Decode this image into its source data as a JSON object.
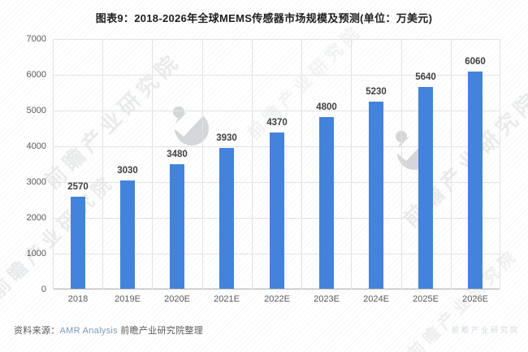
{
  "title": "图表9：2018-2026年全球MEMS传感器市场规模及预测(单位：万美元)",
  "source_note": {
    "label": "资料来源：",
    "source": "AMR Analysis",
    "suffix": " 前瞻产业研究院整理"
  },
  "watermark": {
    "text": "前瞻产业研究院"
  },
  "colors": {
    "bar": "#4383db",
    "grid": "#e2e2e2",
    "axis": "#ababab",
    "title_text": "#1f1f1f",
    "value_label_text": "#3f3f3f",
    "tick_text": "#595959"
  },
  "chart_data": {
    "type": "bar",
    "title": "图表9：2018-2026年全球MEMS传感器市场规模及预测(单位：万美元)",
    "categories": [
      "2018",
      "2019E",
      "2020E",
      "2021E",
      "2022E",
      "2023E",
      "2024E",
      "2025E",
      "2026E"
    ],
    "values": [
      2570,
      3030,
      3480,
      3930,
      4370,
      4800,
      5230,
      5640,
      6060
    ],
    "unit": "万美元",
    "xlabel": "",
    "ylabel": "",
    "ylim": [
      0,
      7000
    ],
    "yticks": [
      0,
      1000,
      2000,
      3000,
      4000,
      5000,
      6000,
      7000
    ],
    "grid": true,
    "legend_position": "none"
  }
}
